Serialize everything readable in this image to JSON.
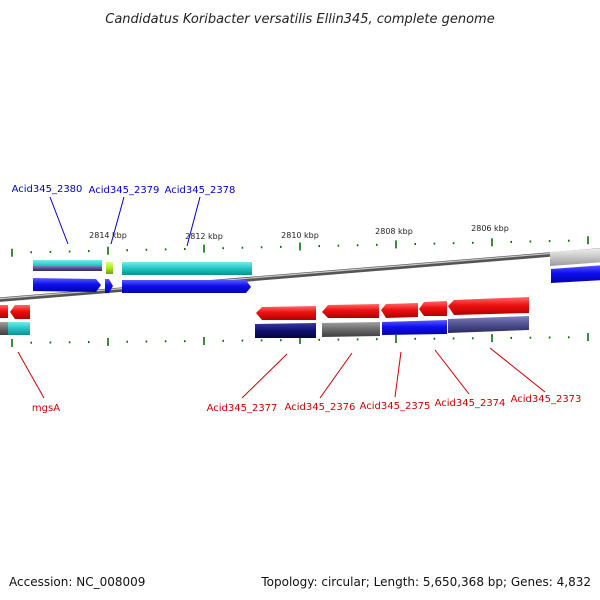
{
  "title": "Candidatus Koribacter versatilis Ellin345, complete genome",
  "footer": {
    "accession": "Accession: NC_008009",
    "topology": "Topology: circular; Length: 5,650,368 bp; Genes: 4,832"
  },
  "colors": {
    "forward_label": "#0000cc",
    "reverse_label": "#cc0000",
    "backbone": "#808080",
    "tick": "#0a6e0a",
    "cds_forward": "#1010ee",
    "cds_reverse": "#ee1111",
    "cog_cyan": "#22c4c4",
    "cog_yellowgreen": "#aaee22",
    "cog_navy": "#101070",
    "cog_gray": "#6a6a6a",
    "cog_slate": "#505090"
  },
  "ticks": [
    {
      "label": "2814 kbp"
    },
    {
      "label": "2812 kbp"
    },
    {
      "label": "2810 kbp"
    },
    {
      "label": "2808 kbp"
    },
    {
      "label": "2806 kbp"
    }
  ],
  "genes": {
    "forward": [
      {
        "name": "Acid345_2380"
      },
      {
        "name": "Acid345_2379"
      },
      {
        "name": "Acid345_2378"
      }
    ],
    "reverse": [
      {
        "name": "mgsA"
      },
      {
        "name": "Acid345_2377"
      },
      {
        "name": "Acid345_2376"
      },
      {
        "name": "Acid345_2375"
      },
      {
        "name": "Acid345_2374"
      },
      {
        "name": "Acid345_2373"
      }
    ]
  }
}
